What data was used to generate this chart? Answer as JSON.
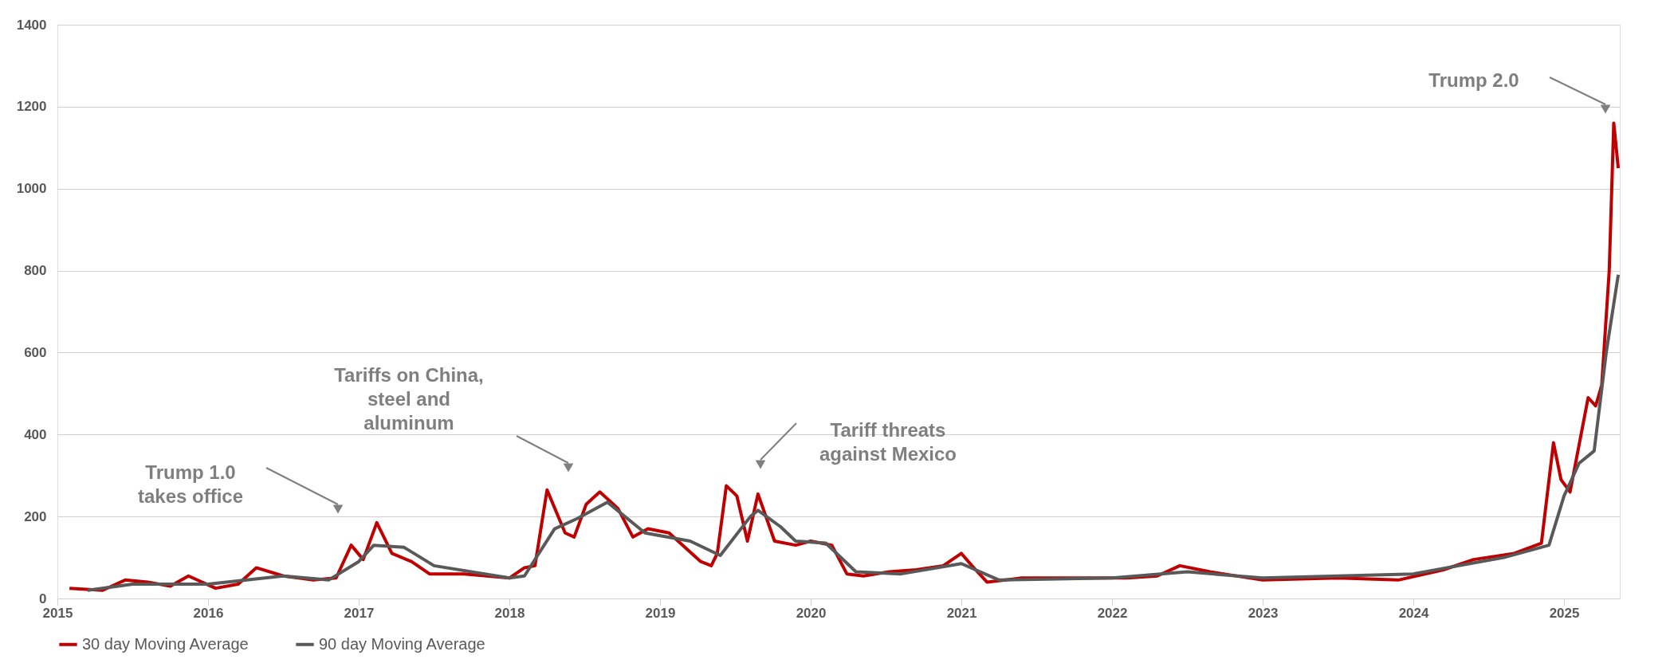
{
  "chart_data": {
    "type": "line",
    "xlim": [
      2015,
      2025.37
    ],
    "xticks": [
      2015,
      2016,
      2017,
      2018,
      2019,
      2020,
      2021,
      2022,
      2023,
      2024,
      2025
    ],
    "ylim": [
      0,
      1400
    ],
    "yticks": [
      0,
      200,
      400,
      600,
      800,
      1000,
      1200,
      1400
    ],
    "grid": "y",
    "legend": "bottom",
    "marker": "none",
    "line_style": "solid",
    "series": [
      {
        "name": "30 day Moving Average",
        "color": "#c00000",
        "x": [
          2015.08,
          2015.3,
          2015.45,
          2015.6,
          2015.75,
          2015.87,
          2016.05,
          2016.2,
          2016.32,
          2016.5,
          2016.7,
          2016.85,
          2016.95,
          2017.03,
          2017.12,
          2017.22,
          2017.35,
          2017.47,
          2017.7,
          2018.0,
          2018.1,
          2018.17,
          2018.25,
          2018.37,
          2018.43,
          2018.51,
          2018.6,
          2018.72,
          2018.82,
          2018.92,
          2019.06,
          2019.27,
          2019.34,
          2019.38,
          2019.44,
          2019.51,
          2019.58,
          2019.65,
          2019.76,
          2019.9,
          2020.0,
          2020.14,
          2020.24,
          2020.35,
          2020.52,
          2020.7,
          2020.88,
          2021.0,
          2021.07,
          2021.17,
          2021.4,
          2022.1,
          2022.3,
          2022.45,
          2022.65,
          2023.0,
          2023.5,
          2023.9,
          2024.2,
          2024.4,
          2024.67,
          2024.85,
          2024.93,
          2024.98,
          2025.04,
          2025.16,
          2025.21,
          2025.25,
          2025.3,
          2025.33,
          2025.36
        ],
        "values": [
          25,
          20,
          45,
          40,
          30,
          55,
          25,
          35,
          75,
          55,
          45,
          50,
          130,
          95,
          185,
          110,
          90,
          60,
          60,
          50,
          75,
          80,
          265,
          160,
          150,
          230,
          260,
          220,
          150,
          170,
          160,
          90,
          80,
          110,
          275,
          250,
          140,
          255,
          140,
          130,
          140,
          130,
          60,
          55,
          65,
          70,
          80,
          110,
          80,
          40,
          50,
          50,
          55,
          80,
          65,
          45,
          50,
          45,
          70,
          95,
          110,
          135,
          380,
          290,
          260,
          490,
          470,
          520,
          800,
          1160,
          1050
        ]
      },
      {
        "name": "90 day Moving Average",
        "color": "#595959",
        "x": [
          2015.2,
          2015.5,
          2016.0,
          2016.5,
          2016.8,
          2017.0,
          2017.1,
          2017.3,
          2017.5,
          2018.0,
          2018.1,
          2018.3,
          2018.45,
          2018.65,
          2018.9,
          2019.2,
          2019.4,
          2019.6,
          2019.65,
          2019.8,
          2019.9,
          2020.1,
          2020.3,
          2020.6,
          2021.0,
          2021.25,
          2022.0,
          2022.5,
          2023.0,
          2024.0,
          2024.6,
          2024.9,
          2025.0,
          2025.1,
          2025.2,
          2025.28,
          2025.36
        ],
        "values": [
          20,
          35,
          35,
          55,
          45,
          90,
          130,
          125,
          80,
          50,
          55,
          170,
          195,
          235,
          160,
          140,
          105,
          200,
          215,
          175,
          140,
          135,
          65,
          60,
          85,
          45,
          50,
          65,
          50,
          60,
          100,
          130,
          250,
          330,
          360,
          600,
          790
        ]
      }
    ],
    "annotations": [
      "Trump 1.0\ntakes office",
      "Tariffs on China,\nsteel and\naluminum",
      "Tariff threats\nagainst Mexico",
      "Trump 2.0"
    ]
  }
}
